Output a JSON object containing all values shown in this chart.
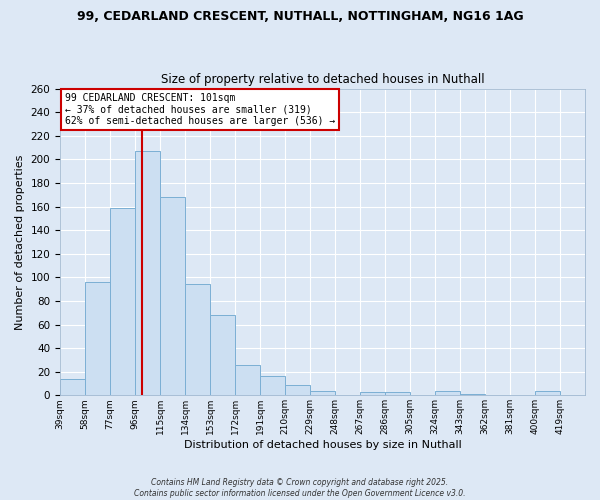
{
  "title1": "99, CEDARLAND CRESCENT, NUTHALL, NOTTINGHAM, NG16 1AG",
  "title2": "Size of property relative to detached houses in Nuthall",
  "xlabel": "Distribution of detached houses by size in Nuthall",
  "ylabel": "Number of detached properties",
  "bin_labels": [
    "39sqm",
    "58sqm",
    "77sqm",
    "96sqm",
    "115sqm",
    "134sqm",
    "153sqm",
    "172sqm",
    "191sqm",
    "210sqm",
    "229sqm",
    "248sqm",
    "267sqm",
    "286sqm",
    "305sqm",
    "324sqm",
    "343sqm",
    "362sqm",
    "381sqm",
    "400sqm",
    "419sqm"
  ],
  "bin_left_edges": [
    39,
    58,
    77,
    96,
    115,
    134,
    153,
    172,
    191,
    210,
    229,
    248,
    267,
    286,
    305,
    324,
    343,
    362,
    381,
    400,
    419
  ],
  "bar_heights": [
    14,
    96,
    159,
    207,
    168,
    94,
    68,
    26,
    16,
    9,
    4,
    0,
    3,
    3,
    0,
    4,
    1,
    0,
    0,
    4,
    0
  ],
  "bar_color": "#ccdff2",
  "bar_edge_color": "#7bafd4",
  "background_color": "#dde8f5",
  "grid_color": "#ffffff",
  "vline_color": "#cc0000",
  "vline_x": 101,
  "ylim": [
    0,
    260
  ],
  "yticks": [
    0,
    20,
    40,
    60,
    80,
    100,
    120,
    140,
    160,
    180,
    200,
    220,
    240,
    260
  ],
  "annotation_title": "99 CEDARLAND CRESCENT: 101sqm",
  "annotation_line1": "← 37% of detached houses are smaller (319)",
  "annotation_line2": "62% of semi-detached houses are larger (536) →",
  "annotation_box_facecolor": "#ffffff",
  "annotation_box_edgecolor": "#cc0000",
  "footnote1": "Contains HM Land Registry data © Crown copyright and database right 2025.",
  "footnote2": "Contains public sector information licensed under the Open Government Licence v3.0."
}
